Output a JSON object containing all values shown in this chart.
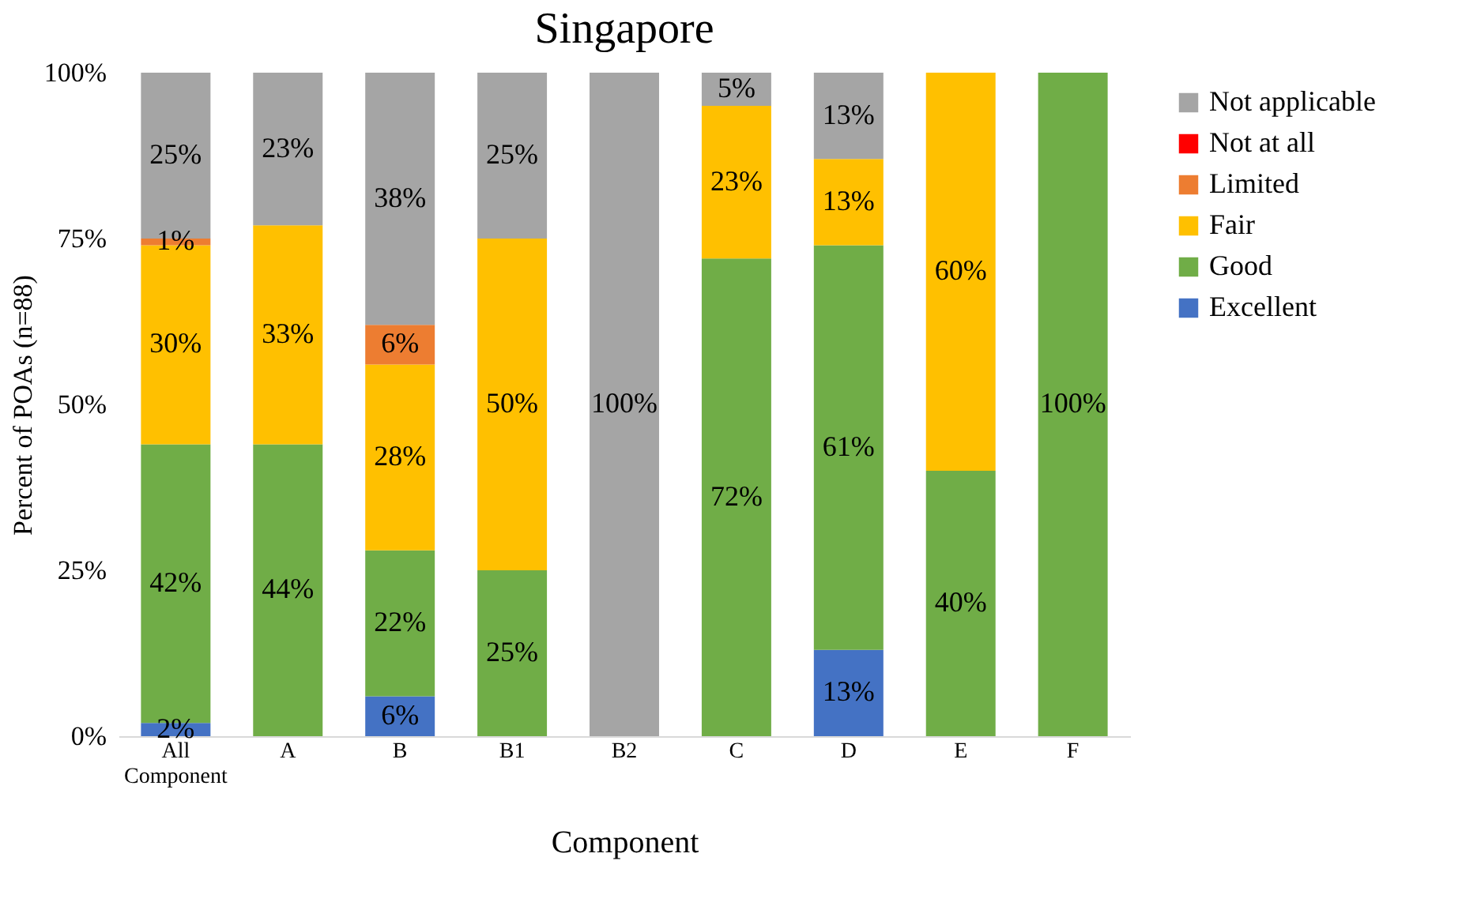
{
  "chart_data": {
    "type": "bar",
    "title": "Singapore",
    "xlabel": "Component",
    "ylabel": "Percent of POAs (n=88)",
    "stacked": true,
    "legend": "right",
    "grid": false,
    "categories": [
      "All Component",
      "A",
      "B",
      "B1",
      "B2",
      "C",
      "D",
      "E",
      "F"
    ],
    "ylim": [
      0,
      100
    ],
    "yticks": [
      {
        "value": 0,
        "label": "0%"
      },
      {
        "value": 25,
        "label": "25%"
      },
      {
        "value": 50,
        "label": "50%"
      },
      {
        "value": 75,
        "label": "75%"
      },
      {
        "value": 100,
        "label": "100%"
      }
    ],
    "series": [
      {
        "name": "Excellent",
        "color": "#4472c4",
        "values": [
          2,
          0,
          6,
          0,
          0,
          0,
          13,
          0,
          0
        ],
        "value_labels": [
          "2%",
          null,
          "6%",
          null,
          null,
          null,
          "13%",
          null,
          null
        ]
      },
      {
        "name": "Good",
        "color": "#70ad47",
        "values": [
          42,
          44,
          22,
          25,
          0,
          72,
          61,
          40,
          100
        ],
        "value_labels": [
          "42%",
          "44%",
          "22%",
          "25%",
          null,
          "72%",
          "61%",
          "40%",
          "100%"
        ]
      },
      {
        "name": "Fair",
        "color": "#ffc000",
        "values": [
          30,
          33,
          28,
          50,
          0,
          23,
          13,
          60,
          0
        ],
        "value_labels": [
          "30%",
          "33%",
          "28%",
          "50%",
          null,
          "23%",
          "13%",
          "60%",
          null
        ]
      },
      {
        "name": "Limited",
        "color": "#ed7d31",
        "values": [
          1,
          0,
          6,
          0,
          0,
          0,
          0,
          0,
          0
        ],
        "value_labels": [
          "1%",
          null,
          "6%",
          null,
          null,
          null,
          null,
          null,
          null
        ]
      },
      {
        "name": "Not at all",
        "color": "#ff0000",
        "values": [
          0,
          0,
          0,
          0,
          0,
          0,
          0,
          0,
          0
        ],
        "value_labels": [
          null,
          null,
          null,
          null,
          null,
          null,
          null,
          null,
          null
        ]
      },
      {
        "name": "Not applicable",
        "color": "#a5a5a5",
        "values": [
          25,
          23,
          38,
          25,
          100,
          5,
          13,
          0,
          0
        ],
        "value_labels": [
          "25%",
          "23%",
          "38%",
          "25%",
          "100%",
          "5%",
          "13%",
          null,
          null
        ]
      }
    ]
  }
}
